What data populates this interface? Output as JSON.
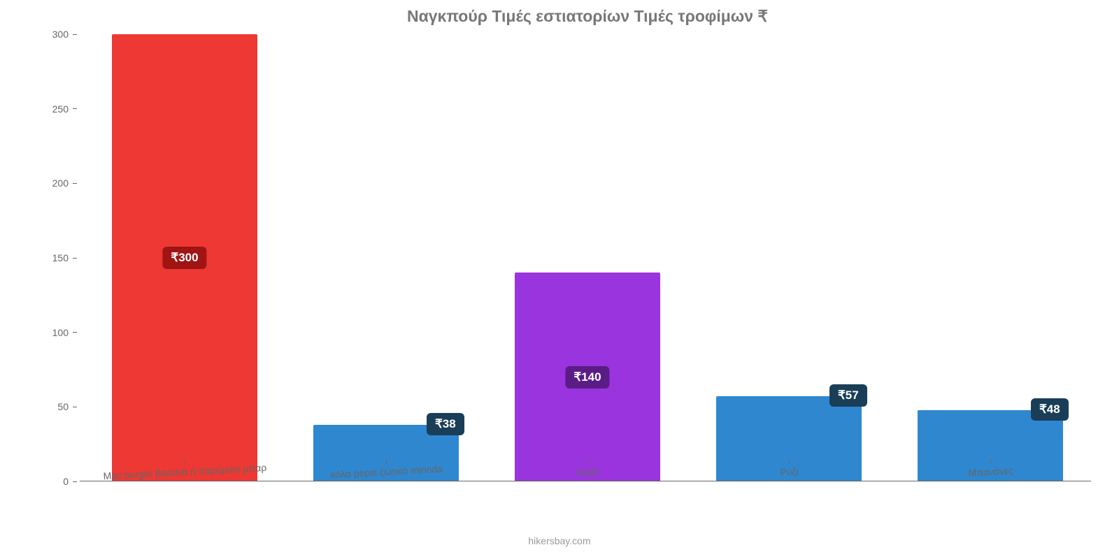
{
  "chart": {
    "type": "bar",
    "title": "Ναγκπούρ Τιμές εστιατορίων Τιμές τροφίμων ₹",
    "title_fontsize": 23,
    "title_color": "#777777",
    "background_color": "#ffffff",
    "axis_color": "#666666",
    "label_color": "#666666",
    "label_fontsize": 14,
    "bar_width_pct": 72,
    "ylim": [
      0,
      300
    ],
    "ytick_step": 50,
    "yticks": [
      0,
      50,
      100,
      150,
      200,
      250,
      300
    ],
    "credit": "hikersbay.com",
    "credit_color": "#999999",
    "categories": [
      "Mac burger βασιλιά ή παρόμοιο μπαρ",
      "κόλα pepsi ξωτικό mirinda",
      "Καφέ",
      "Ρύζι",
      "Μπανάνες"
    ],
    "values": [
      300,
      38,
      140,
      57,
      48
    ],
    "value_labels": [
      "₹300",
      "₹38",
      "₹140",
      "₹57",
      "₹48"
    ],
    "bar_colors": [
      "#ed3833",
      "#2f87d0",
      "#9a34de",
      "#2f87d0",
      "#2f87d0"
    ],
    "badge_colors": [
      "#a01414",
      "#1a3e57",
      "#5a1c85",
      "#1a3e57",
      "#1a3e57"
    ],
    "badge_fontsize": 17,
    "badge_positions": [
      "middle",
      "top",
      "middle",
      "top",
      "top"
    ]
  }
}
